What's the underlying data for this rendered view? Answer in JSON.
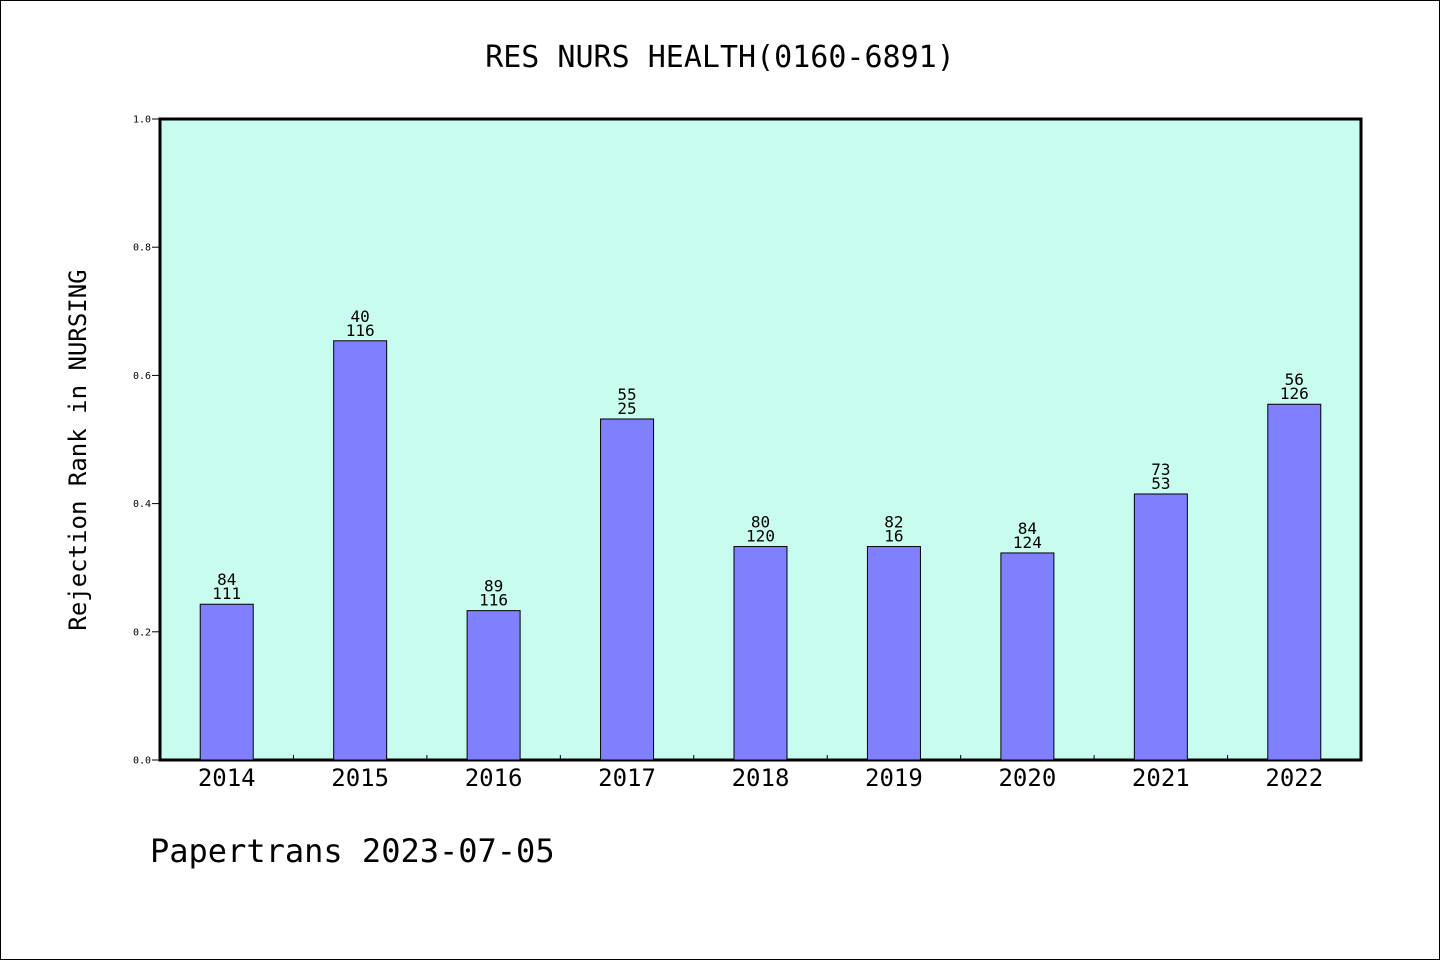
{
  "chart_data": {
    "type": "bar",
    "title": "RES NURS HEALTH(0160-6891)",
    "xlabel": "",
    "ylabel": "Rejection Rank in NURSING",
    "ylim": [
      0,
      1.0
    ],
    "yticks": [
      "0.0",
      "0.2",
      "0.4",
      "0.6",
      "0.8",
      "1.0"
    ],
    "categories": [
      "2014",
      "2015",
      "2016",
      "2017",
      "2018",
      "2019",
      "2020",
      "2021",
      "2022"
    ],
    "values": [
      0.243,
      0.654,
      0.233,
      0.532,
      0.333,
      0.333,
      0.323,
      0.415,
      0.555
    ],
    "labels_top": [
      "84",
      "40",
      "89",
      "55",
      "80",
      "82",
      "84",
      "73",
      "56"
    ],
    "labels_bottom": [
      "111",
      "116",
      "116",
      "25",
      "120",
      "16",
      "124",
      "53",
      "126"
    ],
    "grid": false,
    "colors": {
      "plot_background": "#c8fcee",
      "bar_fill": "#8080ff",
      "bar_stroke": "#000000",
      "axis": "#000000"
    }
  },
  "footer": {
    "text": "Papertrans 2023-07-05"
  }
}
